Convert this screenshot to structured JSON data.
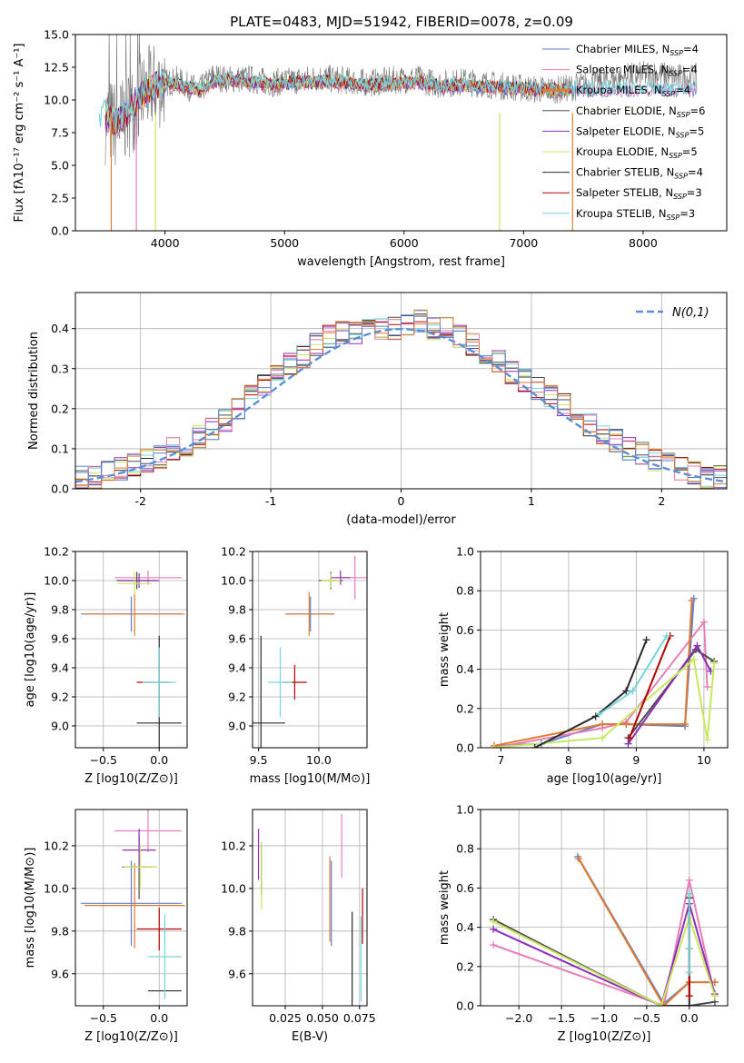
{
  "figure_title": "PLATE=0483, MJD=51942, FIBERID=0078, z=0.09",
  "model_colors": [
    "#5b7fcf",
    "#e87eba",
    "#e07b2f",
    "#4d4d4d",
    "#8c2eb8",
    "#c8e860",
    "#2b2b2b",
    "#b30000",
    "#73d6dc"
  ],
  "chart_data": [
    {
      "id": "spectrum",
      "type": "line",
      "xlabel": "wavelength [Angstrom, rest frame]",
      "ylabel": "Flux [fλ10⁻¹⁷ erg cm⁻² s⁻¹ A⁻¹]",
      "xlim": [
        3250,
        8700
      ],
      "ylim": [
        0,
        15
      ],
      "xticks": [
        4000,
        5000,
        6000,
        7000,
        8000
      ],
      "yticks": [
        0.0,
        2.5,
        5.0,
        7.5,
        10.0,
        12.5,
        15.0
      ],
      "ytick_labels": [
        "0.0",
        "2.5",
        "5.0",
        "7.5",
        "10.0",
        "12.5",
        "15.0"
      ],
      "grid": false,
      "legend_position": "top-right",
      "legend": [
        {
          "label": "Chabrier MILES, N",
          "sub": "SSP",
          "suffix": "=4"
        },
        {
          "label": "Salpeter MILES, N",
          "sub": "SSP",
          "suffix": "=4"
        },
        {
          "label": "Kroupa MILES, N",
          "sub": "SSP",
          "suffix": "=4"
        },
        {
          "label": "Chabrier ELODIE, N",
          "sub": "SSP",
          "suffix": "=6"
        },
        {
          "label": "Salpeter ELODIE, N",
          "sub": "SSP",
          "suffix": "=5"
        },
        {
          "label": "Kroupa ELODIE, N",
          "sub": "SSP",
          "suffix": "=5"
        },
        {
          "label": "Chabrier STELIB, N",
          "sub": "SSP",
          "suffix": "=4"
        },
        {
          "label": "Salpeter STELIB, N",
          "sub": "SSP",
          "suffix": "=3"
        },
        {
          "label": "Kroupa STELIB, N",
          "sub": "SSP",
          "suffix": "=3"
        }
      ],
      "data_x": [
        3500,
        3600,
        3700,
        3800,
        3900,
        4000,
        4100,
        4200,
        4300,
        4400,
        4500,
        4700,
        4900,
        5100,
        5300,
        5500,
        5700,
        5900,
        6100,
        6300,
        6500,
        6700,
        6900,
        7100,
        7300,
        7500,
        7700,
        7900,
        8100,
        8300
      ],
      "data_y": [
        8.5,
        8.0,
        9.0,
        10.2,
        11.0,
        11.3,
        11.5,
        11.0,
        10.8,
        11.8,
        11.6,
        11.6,
        11.3,
        11.5,
        11.7,
        11.5,
        11.3,
        11.5,
        11.6,
        11.2,
        11.4,
        11.2,
        11.0,
        10.8,
        10.8,
        11.1,
        11.5,
        11.8,
        12.0,
        11.7
      ],
      "model_x": [
        3450,
        3500,
        3600,
        3700,
        3800,
        3900,
        4000,
        4100,
        4200,
        4300,
        4400,
        4500,
        4700,
        4900,
        5100,
        5300,
        5500,
        5700,
        5900,
        6100,
        6300,
        6500,
        6700,
        6900,
        7100,
        7300,
        7400
      ],
      "model_y": [
        8.3,
        8.8,
        8.2,
        9.3,
        10.3,
        10.9,
        11.1,
        11.2,
        10.9,
        10.7,
        11.4,
        11.5,
        11.4,
        11.1,
        11.3,
        11.4,
        11.3,
        11.1,
        11.2,
        11.4,
        11.0,
        11.1,
        11.0,
        10.9,
        10.8,
        10.7,
        10.8
      ]
    },
    {
      "id": "residuals",
      "type": "line",
      "xlabel": "(data-model)/error",
      "ylabel": "Normed distribution",
      "xlim": [
        -2.5,
        2.5
      ],
      "ylim": [
        0,
        0.49
      ],
      "xticks": [
        -2,
        -1,
        0,
        1,
        2
      ],
      "yticks": [
        0.0,
        0.1,
        0.2,
        0.3,
        0.4
      ],
      "ytick_labels": [
        "0.0",
        "0.1",
        "0.2",
        "0.3",
        "0.4"
      ],
      "grid": true,
      "legend_position": "top-right",
      "legend": [
        {
          "label": "N(0,1)"
        }
      ],
      "bin_edges": [
        -2.5,
        -2.4,
        -2.3,
        -2.2,
        -2.1,
        -2.0,
        -1.9,
        -1.8,
        -1.7,
        -1.6,
        -1.5,
        -1.4,
        -1.3,
        -1.2,
        -1.1,
        -1.0,
        -0.9,
        -0.8,
        -0.7,
        -0.6,
        -0.5,
        -0.4,
        -0.3,
        -0.2,
        -0.1,
        0.0,
        0.1,
        0.2,
        0.3,
        0.4,
        0.5,
        0.6,
        0.7,
        0.8,
        0.9,
        1.0,
        1.1,
        1.2,
        1.3,
        1.4,
        1.5,
        1.6,
        1.7,
        1.8,
        1.9,
        2.0,
        2.1,
        2.2,
        2.3,
        2.4,
        2.5
      ],
      "histogram_center": [
        0.03,
        0.03,
        0.04,
        0.05,
        0.06,
        0.07,
        0.08,
        0.1,
        0.11,
        0.13,
        0.15,
        0.17,
        0.2,
        0.23,
        0.26,
        0.29,
        0.31,
        0.33,
        0.36,
        0.38,
        0.39,
        0.39,
        0.4,
        0.4,
        0.4,
        0.41,
        0.42,
        0.4,
        0.4,
        0.38,
        0.36,
        0.34,
        0.32,
        0.29,
        0.27,
        0.25,
        0.23,
        0.21,
        0.18,
        0.16,
        0.14,
        0.12,
        0.1,
        0.09,
        0.07,
        0.06,
        0.05,
        0.04,
        0.03,
        0.03
      ],
      "gaussian": {
        "name": "N(0,1)",
        "mean": 0,
        "sigma": 1
      }
    },
    {
      "id": "age_vs_Z",
      "type": "errorbar",
      "xlabel": "Z [log10(Z/Z⊙)]",
      "ylabel": "age  [log10(age/yr)]",
      "xlim": [
        -0.75,
        0.25
      ],
      "ylim": [
        8.85,
        10.2
      ],
      "xticks": [
        -0.5,
        0.0
      ],
      "xtick_labels": [
        "−0.5",
        "0.0"
      ],
      "yticks": [
        9.0,
        9.2,
        9.4,
        9.6,
        9.8,
        10.0,
        10.2
      ],
      "ytick_labels": [
        "9.0",
        "9.2",
        "9.4",
        "9.6",
        "9.8",
        "10.0",
        "10.2"
      ],
      "grid": true,
      "points": [
        {
          "x": -0.25,
          "xerr": 0.45,
          "y": 9.77,
          "yerr": 0.12,
          "c": 0
        },
        {
          "x": -0.1,
          "xerr": 0.3,
          "y": 10.02,
          "yerr": 0.05,
          "c": 1
        },
        {
          "x": -0.22,
          "xerr": 0.45,
          "y": 9.77,
          "yerr": 0.15,
          "c": 2
        },
        {
          "x": -0.2,
          "xerr": 0.18,
          "y": 10.0,
          "yerr": 0.06,
          "c": 3
        },
        {
          "x": -0.18,
          "xerr": 0.18,
          "y": 10.0,
          "yerr": 0.05,
          "c": 4
        },
        {
          "x": -0.22,
          "xerr": 0.15,
          "y": 9.98,
          "yerr": 0.08,
          "c": 5
        },
        {
          "x": 0.0,
          "xerr": 0.2,
          "y": 9.02,
          "yerr": 0.6,
          "c": 6
        },
        {
          "x": -0.05,
          "xerr": 0.15,
          "y": 9.3,
          "yerr": 0.0,
          "c": 7
        },
        {
          "x": 0.0,
          "xerr": 0.15,
          "y": 9.3,
          "yerr": 0.24,
          "c": 8
        }
      ]
    },
    {
      "id": "age_vs_mass",
      "type": "errorbar",
      "xlabel": "mass [log10(M/M⊙)]",
      "ylabel": "",
      "xlim": [
        9.45,
        10.4
      ],
      "ylim": [
        8.85,
        10.2
      ],
      "xticks": [
        9.5,
        10.0
      ],
      "xtick_labels": [
        "9.5",
        "10.0"
      ],
      "yticks": [
        9.0,
        9.2,
        9.4,
        9.6,
        9.8,
        10.0,
        10.2
      ],
      "ytick_labels": [
        "9.0",
        "9.2",
        "9.4",
        "9.6",
        "9.8",
        "10.0",
        "10.2"
      ],
      "grid": true,
      "points": [
        {
          "x": 9.93,
          "xerr": 0.2,
          "y": 9.77,
          "yerr": 0.12,
          "c": 0
        },
        {
          "x": 10.3,
          "xerr": 0.1,
          "y": 10.02,
          "yerr": 0.15,
          "c": 1
        },
        {
          "x": 9.92,
          "xerr": 0.2,
          "y": 9.77,
          "yerr": 0.15,
          "c": 2
        },
        {
          "x": 10.1,
          "xerr": 0.1,
          "y": 10.0,
          "yerr": 0.06,
          "c": 3
        },
        {
          "x": 10.18,
          "xerr": 0.08,
          "y": 10.02,
          "yerr": 0.05,
          "c": 4
        },
        {
          "x": 10.1,
          "xerr": 0.08,
          "y": 10.0,
          "yerr": 0.05,
          "c": 5
        },
        {
          "x": 9.52,
          "xerr": 0.2,
          "y": 9.02,
          "yerr": 0.6,
          "c": 6
        },
        {
          "x": 9.8,
          "xerr": 0.1,
          "y": 9.3,
          "yerr": 0.12,
          "c": 7
        },
        {
          "x": 9.68,
          "xerr": 0.1,
          "y": 9.3,
          "yerr": 0.24,
          "c": 8
        }
      ]
    },
    {
      "id": "mass_weight_vs_age",
      "type": "line",
      "xlabel": "age  [log10(age/yr)]",
      "ylabel": "mass weight",
      "xlim": [
        6.7,
        10.35
      ],
      "ylim": [
        0,
        1
      ],
      "xticks": [
        7,
        8,
        9,
        10
      ],
      "xtick_labels": [
        "7",
        "8",
        "9",
        "10"
      ],
      "yticks": [
        0.0,
        0.2,
        0.4,
        0.6,
        0.8,
        1.0
      ],
      "ytick_labels": [
        "0.0",
        "0.2",
        "0.4",
        "0.6",
        "0.8",
        "1.0"
      ],
      "grid": true,
      "series": [
        {
          "c": 0,
          "x": [
            6.9,
            7.6,
            8.5,
            8.85,
            9.72,
            9.85
          ],
          "y": [
            0.01,
            0.02,
            0.12,
            0.12,
            0.11,
            0.76
          ]
        },
        {
          "c": 1,
          "x": [
            6.9,
            8.5,
            8.85,
            10.0,
            10.05
          ],
          "y": [
            0.0,
            0.1,
            0.13,
            0.64,
            0.31
          ]
        },
        {
          "c": 2,
          "x": [
            6.9,
            8.5,
            8.85,
            9.72,
            9.82
          ],
          "y": [
            0.01,
            0.12,
            0.12,
            0.12,
            0.75
          ]
        },
        {
          "c": 3,
          "x": [
            8.88,
            9.88,
            10.15
          ],
          "y": [
            0.05,
            0.5,
            0.44
          ]
        },
        {
          "c": 4,
          "x": [
            8.88,
            9.9,
            10.1
          ],
          "y": [
            0.02,
            0.52,
            0.39
          ]
        },
        {
          "c": 5,
          "x": [
            6.9,
            8.5,
            9.85,
            10.05,
            10.15
          ],
          "y": [
            0.0,
            0.05,
            0.45,
            0.04,
            0.43
          ]
        },
        {
          "c": 6,
          "x": [
            7.5,
            8.4,
            8.85,
            9.15
          ],
          "y": [
            0.0,
            0.16,
            0.29,
            0.55
          ]
        },
        {
          "c": 7,
          "x": [
            8.9,
            9.5
          ],
          "y": [
            0.05,
            0.57
          ]
        },
        {
          "c": 8,
          "x": [
            8.45,
            8.95,
            9.45
          ],
          "y": [
            0.17,
            0.29,
            0.57
          ]
        }
      ]
    },
    {
      "id": "mass_vs_Z",
      "type": "errorbar",
      "xlabel": "Z [log10(Z/Z⊙)]",
      "ylabel": "mass [log10(M/M⊙)]",
      "xlim": [
        -0.75,
        0.25
      ],
      "ylim": [
        9.45,
        10.37
      ],
      "xticks": [
        -0.5,
        0.0
      ],
      "xtick_labels": [
        "−0.5",
        "0.0"
      ],
      "yticks": [
        9.6,
        9.8,
        10.0,
        10.2
      ],
      "ytick_labels": [
        "9.6",
        "9.8",
        "10.0",
        "10.2"
      ],
      "grid": true,
      "points": [
        {
          "x": -0.25,
          "xerr": 0.45,
          "y": 9.93,
          "yerr": 0.2,
          "c": 0
        },
        {
          "x": -0.1,
          "xerr": 0.3,
          "y": 10.27,
          "yerr": 0.1,
          "c": 1
        },
        {
          "x": -0.22,
          "xerr": 0.45,
          "y": 9.92,
          "yerr": 0.2,
          "c": 2
        },
        {
          "x": -0.18,
          "xerr": 0.15,
          "y": 10.1,
          "yerr": 0.15,
          "c": 3
        },
        {
          "x": -0.18,
          "xerr": 0.15,
          "y": 10.18,
          "yerr": 0.1,
          "c": 4
        },
        {
          "x": -0.17,
          "xerr": 0.15,
          "y": 10.1,
          "yerr": 0.1,
          "c": 5
        },
        {
          "x": 0.05,
          "xerr": 0.15,
          "y": 9.52,
          "yerr": 0.0,
          "c": 6
        },
        {
          "x": 0.0,
          "xerr": 0.2,
          "y": 9.81,
          "yerr": 0.1,
          "c": 7
        },
        {
          "x": 0.05,
          "xerr": 0.15,
          "y": 9.68,
          "yerr": 0.2,
          "c": 8
        }
      ]
    },
    {
      "id": "mass_vs_ebv",
      "type": "errorbar",
      "xlabel": "E(B-V)",
      "ylabel": "",
      "xlim": [
        0.003,
        0.08
      ],
      "ylim": [
        9.45,
        10.37
      ],
      "xticks": [
        0.025,
        0.05,
        0.075
      ],
      "xtick_labels": [
        "0.025",
        "0.050",
        "0.075"
      ],
      "yticks": [
        9.6,
        9.8,
        10.0,
        10.2
      ],
      "ytick_labels": [
        "9.6",
        "9.8",
        "10.0",
        "10.2"
      ],
      "grid": true,
      "points": [
        {
          "x": 0.056,
          "xerr": 0.0,
          "y": 9.93,
          "yerr": 0.2,
          "c": 0
        },
        {
          "x": 0.063,
          "xerr": 0.0,
          "y": 10.2,
          "yerr": 0.15,
          "c": 1
        },
        {
          "x": 0.055,
          "xerr": 0.0,
          "y": 9.95,
          "yerr": 0.2,
          "c": 2
        },
        {
          "x": 0.009,
          "xerr": 0.0,
          "y": 10.09,
          "yerr": 0.12,
          "c": 3
        },
        {
          "x": 0.007,
          "xerr": 0.0,
          "y": 10.16,
          "yerr": 0.12,
          "c": 4
        },
        {
          "x": 0.009,
          "xerr": 0.0,
          "y": 10.06,
          "yerr": 0.16,
          "c": 5
        },
        {
          "x": 0.07,
          "xerr": 0.0,
          "y": 9.63,
          "yerr": 0.26,
          "c": 6
        },
        {
          "x": 0.077,
          "xerr": 0.0,
          "y": 9.87,
          "yerr": 0.13,
          "c": 7
        },
        {
          "x": 0.076,
          "xerr": 0.0,
          "y": 9.67,
          "yerr": 0.2,
          "c": 8
        }
      ]
    },
    {
      "id": "mass_weight_vs_Z",
      "type": "line",
      "xlabel": "Z [log10(Z/Z⊙)]",
      "ylabel": "mass weight",
      "xlim": [
        -2.45,
        0.45
      ],
      "ylim": [
        0,
        1
      ],
      "xticks": [
        -2.0,
        -1.5,
        -1.0,
        -0.5,
        0.0
      ],
      "xtick_labels": [
        "−2.0",
        "−1.5",
        "−1.0",
        "−0.5",
        "0.0"
      ],
      "yticks": [
        0.0,
        0.2,
        0.4,
        0.6,
        0.8,
        1.0
      ],
      "ytick_labels": [
        "0.0",
        "0.2",
        "0.4",
        "0.6",
        "0.8",
        "1.0"
      ],
      "grid": true,
      "series": [
        {
          "c": 0,
          "x": [
            -1.31,
            -0.3,
            0.0,
            0.3
          ],
          "y": [
            0.76,
            0.01,
            0.12,
            0.12
          ]
        },
        {
          "c": 1,
          "x": [
            -2.3,
            -0.3,
            0.0,
            0.3
          ],
          "y": [
            0.31,
            0.0,
            0.64,
            0.05
          ]
        },
        {
          "c": 2,
          "x": [
            -1.3,
            -0.3,
            0.0,
            0.3
          ],
          "y": [
            0.75,
            0.0,
            0.12,
            0.12
          ]
        },
        {
          "c": 3,
          "x": [
            -2.3,
            -0.33,
            0.0,
            0.3
          ],
          "y": [
            0.44,
            0.0,
            0.0,
            0.02
          ]
        },
        {
          "c": 4,
          "x": [
            -2.3,
            -0.33,
            0.0,
            0.3
          ],
          "y": [
            0.39,
            0.0,
            0.52,
            0.06
          ]
        },
        {
          "c": 5,
          "x": [
            -2.3,
            -0.33,
            0.0,
            0.3
          ],
          "y": [
            0.43,
            0.0,
            0.45,
            0.05
          ]
        },
        {
          "c": 6,
          "x": [
            0.0,
            0.0,
            0.0
          ],
          "y": [
            0.0,
            0.29,
            0.55
          ]
        },
        {
          "c": 7,
          "x": [
            0.0,
            0.0
          ],
          "y": [
            0.05,
            0.57
          ]
        },
        {
          "c": 8,
          "x": [
            0.0,
            0.0,
            0.0
          ],
          "y": [
            0.17,
            0.29,
            0.57
          ]
        }
      ]
    }
  ]
}
